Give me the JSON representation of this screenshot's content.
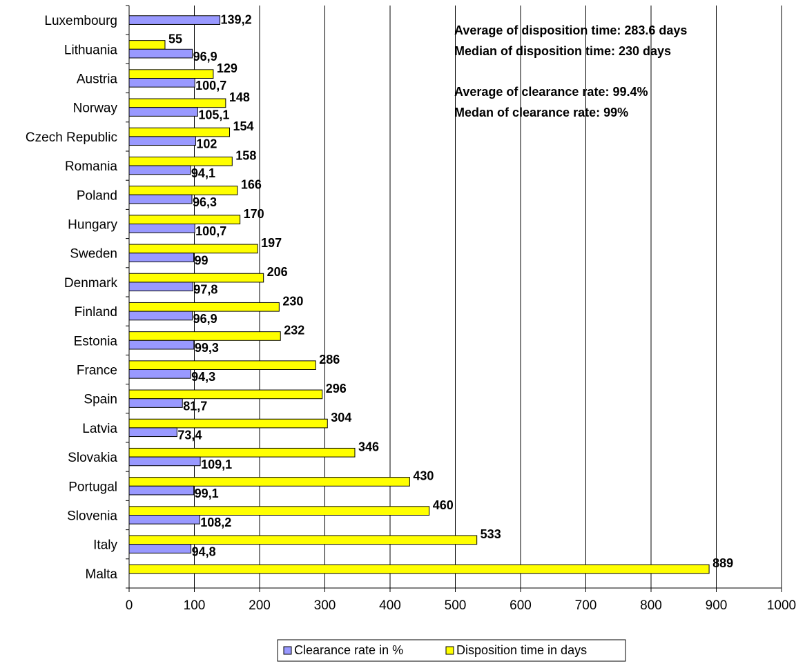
{
  "chart_data": {
    "type": "bar",
    "orientation": "horizontal",
    "categories": [
      "Luxembourg",
      "Lithuania",
      "Austria",
      "Norway",
      "Czech Republic",
      "Romania",
      "Poland",
      "Hungary",
      "Sweden",
      "Denmark",
      "Finland",
      "Estonia",
      "France",
      "Spain",
      "Latvia",
      "Slovakia",
      "Portugal",
      "Slovenia",
      "Italy",
      "Malta"
    ],
    "series": [
      {
        "name": "Disposition time in days",
        "color": "#ffff00",
        "values": [
          null,
          55,
          129,
          148,
          154,
          158,
          166,
          170,
          197,
          206,
          230,
          232,
          286,
          296,
          304,
          346,
          430,
          460,
          533,
          889
        ],
        "labels": [
          "",
          "55",
          "129",
          "148",
          "154",
          "158",
          "166",
          "170",
          "197",
          "206",
          "230",
          "232",
          "286",
          "296",
          "304",
          "346",
          "430",
          "460",
          "533",
          "889"
        ]
      },
      {
        "name": "Clearance rate in %",
        "color": "#9999ff",
        "values": [
          139.2,
          96.9,
          100.7,
          105.1,
          102,
          94.1,
          96.3,
          100.7,
          99,
          97.8,
          96.9,
          99.3,
          94.3,
          81.7,
          73.4,
          109.1,
          99.1,
          108.2,
          94.8,
          null
        ],
        "labels": [
          "139,2",
          "96,9",
          "100,7",
          "105,1",
          "102",
          "94,1",
          "96,3",
          "100,7",
          "99",
          "97,8",
          "96,9",
          "99,3",
          "94,3",
          "81,7",
          "73,4",
          "109,1",
          "99,1",
          "108,2",
          "94,8",
          ""
        ]
      }
    ],
    "xlim": [
      0,
      1000
    ],
    "xticks": [
      "0",
      "100",
      "200",
      "300",
      "400",
      "500",
      "600",
      "700",
      "800",
      "900",
      "1000"
    ],
    "grid": "vertical",
    "annotations": [
      "Average of disposition time: 283.6 days",
      "Median of disposition time: 230 days",
      "Average of clearance rate: 99.4%",
      "Medan of clearance rate: 99%"
    ],
    "legend": {
      "position": "bottom",
      "items": [
        {
          "label": "Clearance rate in %",
          "color": "#9999ff"
        },
        {
          "label": "Disposition time in days",
          "color": "#ffff00"
        }
      ]
    }
  }
}
